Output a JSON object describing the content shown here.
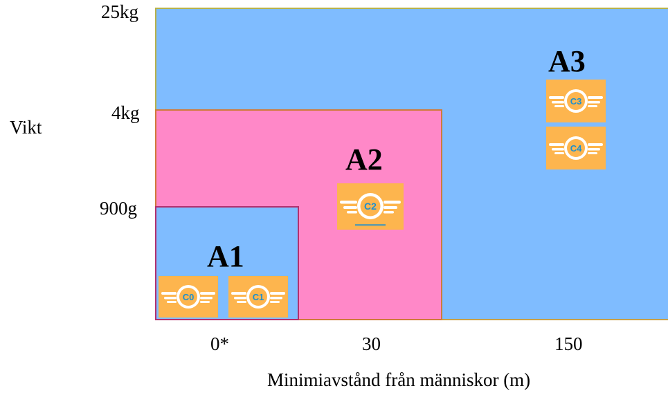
{
  "axes": {
    "y_label": "Vikt",
    "x_label": "Minimiavstånd från människor (m)",
    "y_ticks": [
      "25kg",
      "4kg",
      "900g"
    ],
    "x_ticks": [
      "0*",
      "30",
      "150"
    ]
  },
  "zones": [
    {
      "label": "A1",
      "fill": "#7fbcff",
      "classes": [
        "C0",
        "C1"
      ]
    },
    {
      "label": "A2",
      "fill": "#ff88c8",
      "classes": [
        "C2"
      ]
    },
    {
      "label": "A3",
      "fill": "#7fbcff",
      "classes": [
        "C3",
        "C4"
      ]
    }
  ],
  "badge_style": {
    "background": "#fdb54e",
    "emblem_color": "#ffffff",
    "text_color": "#1d8fce",
    "icon": "winged-class-emblem-icon"
  }
}
